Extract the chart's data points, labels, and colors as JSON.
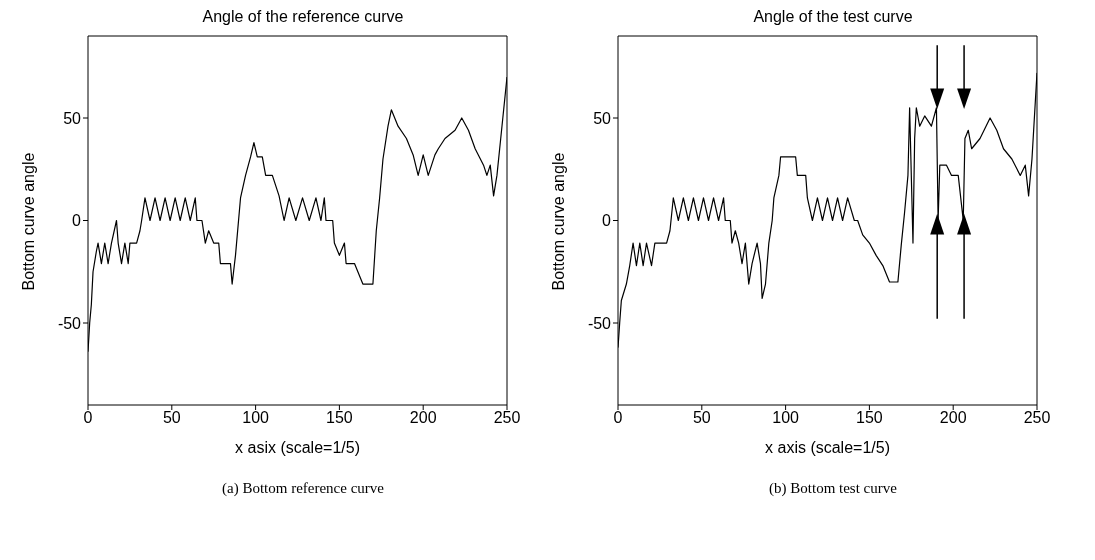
{
  "chart_data": [
    {
      "type": "line",
      "title": "Angle of the reference curve",
      "xlabel": "x asix (scale=1/5)",
      "ylabel": "Bottom curve angle",
      "annotations": [
        "(a) Bottom reference curve"
      ],
      "xlim": [
        0,
        250
      ],
      "xticks": [
        0,
        50,
        100,
        150,
        200,
        250
      ],
      "ylim": [
        -90,
        90
      ],
      "yticks": [
        -50,
        0,
        50
      ],
      "grid": false,
      "legend": false,
      "x": [
        0,
        1,
        2,
        3,
        5,
        6,
        8,
        10,
        12,
        14,
        17,
        18,
        20,
        22,
        24,
        25,
        29,
        31,
        32,
        34,
        37,
        40,
        43,
        46,
        49,
        52,
        55,
        58,
        61,
        64,
        65,
        68,
        70,
        72,
        75,
        78,
        79,
        85,
        86,
        88,
        91,
        94,
        97,
        99,
        101,
        104,
        106,
        110,
        112,
        114,
        117,
        120,
        124,
        128,
        132,
        136,
        139,
        141,
        142,
        146,
        147,
        150,
        153,
        154,
        159,
        164,
        170,
        172,
        174,
        176,
        179,
        181,
        185,
        190,
        194,
        197,
        200,
        203,
        207,
        209,
        213,
        219,
        223,
        227,
        231,
        236,
        238,
        240,
        242,
        244,
        247,
        250
      ],
      "series": [
        {
          "color": "#000000",
          "values": [
            -64,
            -50,
            -41,
            -25,
            -15,
            -11,
            -21,
            -11,
            -21,
            -11,
            0,
            -11,
            -21,
            -11,
            -21,
            -11,
            -11,
            -5,
            0,
            11,
            0,
            11,
            0,
            11,
            0,
            11,
            0,
            11,
            0,
            11,
            0,
            0,
            -11,
            -5,
            -11,
            -11,
            -21,
            -21,
            -31,
            -17,
            11,
            22,
            31,
            38,
            31,
            31,
            22,
            22,
            17,
            12,
            0,
            11,
            0,
            11,
            0,
            11,
            0,
            11,
            0,
            0,
            -11,
            -17,
            -11,
            -21,
            -21,
            -31,
            -31,
            -5,
            11,
            30,
            46,
            54,
            46,
            40,
            32,
            22,
            32,
            22,
            32,
            35,
            40,
            44,
            50,
            44,
            35,
            27,
            22,
            27,
            12,
            22,
            46,
            70
          ]
        }
      ]
    },
    {
      "type": "line",
      "title": "Angle of the test curve",
      "xlabel": "x axis (scale=1/5)",
      "ylabel": "Bottom curve angle",
      "annotations": [
        "(b) Bottom test curve"
      ],
      "xlim": [
        0,
        250
      ],
      "xticks": [
        0,
        50,
        100,
        150,
        200,
        250
      ],
      "ylim": [
        -90,
        90
      ],
      "yticks": [
        -50,
        0,
        50
      ],
      "grid": false,
      "legend": false,
      "x": [
        0,
        1,
        2,
        5,
        7,
        9,
        11,
        13,
        15,
        17,
        20,
        22,
        29,
        31,
        33,
        36,
        39,
        42,
        45,
        48,
        51,
        54,
        57,
        60,
        63,
        64,
        67,
        68,
        70,
        72,
        74,
        76,
        78,
        80,
        83,
        85,
        86,
        88,
        90,
        92,
        93,
        96,
        97,
        106,
        107,
        112,
        113,
        116,
        119,
        122,
        125,
        128,
        131,
        134,
        137,
        141,
        143,
        146,
        150,
        154,
        158,
        160,
        162,
        167,
        169,
        171,
        173,
        174,
        176,
        177,
        178,
        180,
        183,
        187,
        190,
        191,
        192,
        196,
        199,
        203,
        206,
        207,
        209,
        211,
        216,
        222,
        226,
        230,
        235,
        240,
        243,
        245,
        247,
        250
      ],
      "series": [
        {
          "color": "#000000",
          "values": [
            -62,
            -50,
            -39,
            -31,
            -22,
            -11,
            -22,
            -11,
            -22,
            -11,
            -22,
            -11,
            -11,
            -5,
            11,
            0,
            11,
            0,
            11,
            0,
            11,
            0,
            11,
            0,
            11,
            0,
            0,
            -11,
            -5,
            -11,
            -21,
            -11,
            -31,
            -21,
            -11,
            -21,
            -38,
            -31,
            -11,
            0,
            11,
            22,
            31,
            31,
            22,
            22,
            11,
            0,
            11,
            0,
            11,
            0,
            11,
            0,
            11,
            0,
            0,
            -7,
            -11,
            -17,
            -22,
            -26,
            -30,
            -30,
            -12,
            4,
            22,
            55,
            -11,
            40,
            55,
            46,
            51,
            46,
            55,
            0,
            27,
            27,
            22,
            22,
            0,
            40,
            44,
            35,
            40,
            50,
            44,
            35,
            30,
            22,
            27,
            12,
            30,
            72
          ]
        }
      ]
    }
  ]
}
